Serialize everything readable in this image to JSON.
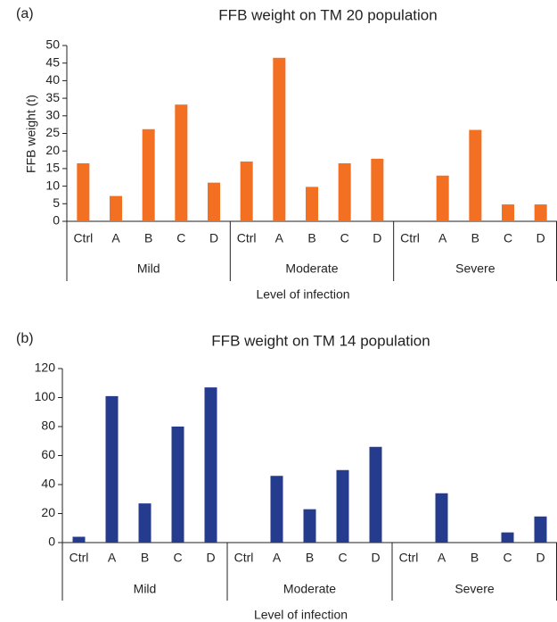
{
  "chart_data": [
    {
      "type": "bar",
      "panel_label": "(a)",
      "title": "FFB weight on TM 20 population",
      "y_label": "FFB weight (t)",
      "x_label": "Level of infection",
      "categories": [
        "Ctrl",
        "A",
        "B",
        "C",
        "D",
        "Ctrl",
        "A",
        "B",
        "C",
        "D",
        "Ctrl",
        "A",
        "B",
        "C",
        "D"
      ],
      "groups": [
        "Mild",
        "Moderate",
        "Severe"
      ],
      "values": [
        16.5,
        7.2,
        26.2,
        33.2,
        11,
        17,
        46.5,
        9.8,
        16.5,
        17.8,
        0,
        13,
        26,
        4.8,
        4.8
      ],
      "color": "#f36f21",
      "ylim": [
        0,
        50
      ],
      "yticks": [
        0,
        5,
        10,
        15,
        20,
        25,
        30,
        35,
        40,
        45,
        50
      ]
    },
    {
      "type": "bar",
      "panel_label": "(b)",
      "title": "FFB weight on TM 14 population",
      "x_label": "Level of infection",
      "categories": [
        "Ctrl",
        "A",
        "B",
        "C",
        "D",
        "Ctrl",
        "A",
        "B",
        "C",
        "D",
        "Ctrl",
        "A",
        "B",
        "C",
        "D"
      ],
      "groups": [
        "Mild",
        "Moderate",
        "Severe"
      ],
      "values": [
        4,
        101,
        27,
        80,
        107,
        0,
        46,
        23,
        50,
        66,
        0,
        34,
        0,
        7,
        18
      ],
      "color": "#253b8e",
      "ylim": [
        0,
        120
      ],
      "yticks": [
        0,
        20,
        40,
        60,
        80,
        100,
        120
      ]
    }
  ]
}
